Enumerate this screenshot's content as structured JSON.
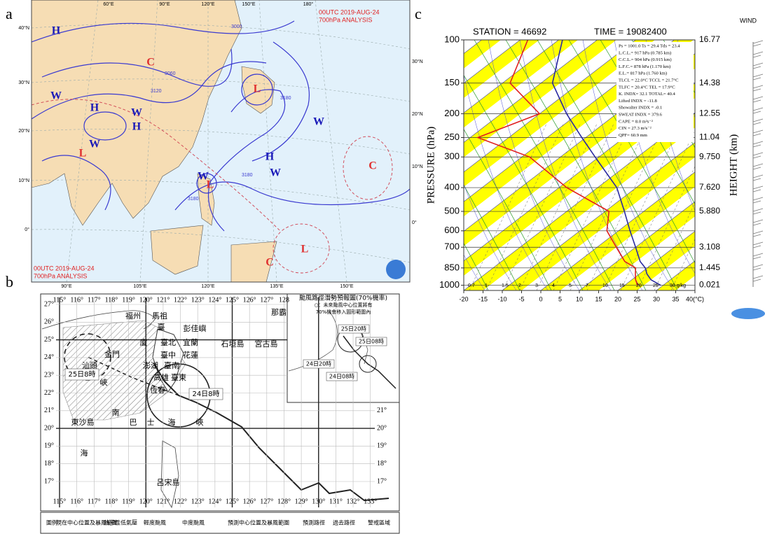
{
  "panel_labels": [
    "a",
    "b",
    "c"
  ],
  "weather_map": {
    "header": [
      "00UTC  2019-AUG-24",
      "700hPa ANALYSIS"
    ],
    "footer": [
      "00UTC  2019-AUG-24",
      "700hPa ANALYSIS"
    ],
    "top_longitudes": [
      "60°E",
      "90°E",
      "120°E",
      "150°E",
      "180°"
    ],
    "bottom_longitudes": [
      "90°E",
      "105°E",
      "120°E",
      "135°E",
      "150°E"
    ],
    "left_latitudes": [
      "40°N",
      "30°N",
      "20°N",
      "10°N",
      "0°"
    ],
    "right_latitudes": [
      "30°N",
      "20°N",
      "10°N",
      "0°"
    ],
    "systems": [
      "H",
      "C",
      "L",
      "W",
      "H",
      "W",
      "H",
      "W",
      "L",
      "W",
      "H",
      "W",
      "W",
      "L",
      "C",
      "L",
      "C"
    ],
    "system_colors": {
      "H": "#1a1ab8",
      "W": "#1a1ab8",
      "L": "#e03030",
      "C": "#e03030"
    },
    "contour_labels": [
      "3000",
      "3060",
      "3120",
      "3180",
      "3180",
      "3180"
    ]
  },
  "track_map": {
    "title": [
      "颱風路徑潛勢預報圖(70%機率)",
      "○：未來颱風中心位置將有",
      "70%機會移入圓形範圍內"
    ],
    "top_longitudes": [
      "115°",
      "116°",
      "117°",
      "118°",
      "119°",
      "120°",
      "121°",
      "122°",
      "123°",
      "124°",
      "125°",
      "126°",
      "127°",
      "128"
    ],
    "bottom_longitudes": [
      "115°",
      "116°",
      "117°",
      "118°",
      "119°",
      "120°",
      "121°",
      "122°",
      "123°",
      "124°",
      "125°",
      "126°",
      "127°",
      "128°",
      "129°",
      "130°",
      "131°",
      "132°",
      "133°"
    ],
    "left_latitudes": [
      "27°",
      "26°",
      "25°",
      "24°",
      "23°",
      "22°",
      "21°",
      "20°",
      "19°",
      "18°",
      "17°"
    ],
    "right_latitudes": [
      "21°",
      "20°",
      "19°",
      "18°",
      "17°"
    ],
    "places": [
      "馬祖",
      "福州",
      "臺",
      "彭佳嶼",
      "那霸",
      "廈",
      "臺北",
      "宜蘭",
      "金門",
      "臺中",
      "花蓮",
      "汕頭",
      "澎湖",
      "臺南",
      "高雄",
      "恆春",
      "臺東",
      "石垣島",
      "宮古島",
      "峽",
      "東沙島",
      "南",
      "巴",
      "士",
      "海",
      "峽",
      "海",
      "呂宋島"
    ],
    "time_labels": [
      "25日8時",
      "24日8時"
    ],
    "inset_labels": [
      "25日20時",
      "25日08時",
      "24日20時",
      "24日08時"
    ],
    "legend": [
      "圖例",
      "現在中心位置及暴風範圍",
      "熱帶性低氣壓",
      "輕度颱風",
      "中度颱風",
      "預測中心位置及暴風範圍",
      "預測路徑",
      "過去路徑",
      "警戒區域"
    ]
  },
  "sounding": {
    "station": "STATION = 46692",
    "time": "TIME = 19082400",
    "wind_label": "WIND",
    "pressure_label": "PRESSURE (hPa)",
    "height_label": "HEIGHT (km)",
    "plim": [
      1050,
      100
    ],
    "xlim": [
      -20,
      40
    ],
    "pressure_ticks": [
      100,
      150,
      200,
      250,
      300,
      400,
      500,
      600,
      700,
      850,
      1000
    ],
    "height_labels": [
      "16.77",
      "14.38",
      "12.55",
      "11.04",
      "9.750",
      "7.620",
      "5.880",
      null,
      "3.108",
      "1.445",
      "0.021"
    ],
    "temperature_ticks": [
      -20,
      -15,
      -10,
      -5,
      0,
      5,
      10,
      15,
      20,
      25,
      30,
      35,
      {
        "value": 40,
        "label": "40(°C)"
      }
    ],
    "mixing_ratio_labels": [
      "0.7",
      "1",
      "1.5",
      "2",
      "3",
      "4",
      "5",
      "7",
      "10",
      "15",
      "20",
      "25",
      "30 g/kg"
    ],
    "indices": [
      "Ps = 1001.0  Ts = 29.4  Tds = 23.4",
      "L.C.L.= 917 hPa (0.785 km)",
      "C.C.L.= 904 hPa (0.915 km)",
      "L.F.C.= 878 hPa (1.170 km)",
      "E.L.= 817 hPa (1.760 km)",
      "TLCL = 22.0°C  TCCL = 21.7°C",
      "TLFC = 20.4°C  TEL = 17.9°C",
      "K. INDX= 32.1  TOTAL= 40.4",
      "Lifted INDX = -11.8",
      "Showalter INDX = -0.1",
      "SWEAT INDX = 379.6",
      "CAPE = 8.0 m²s⁻²",
      "CIN = 27.3 m²s⁻²",
      "QPF= 60.9 mm"
    ],
    "profile_pressure": [
      1001,
      950,
      900,
      850,
      800,
      700,
      600,
      500,
      400,
      300,
      250,
      200,
      150,
      100
    ],
    "temperature": [
      29.4,
      25,
      22,
      19.5,
      16,
      10,
      3,
      -5,
      -15,
      -31,
      -41,
      -53,
      -67,
      -79
    ],
    "dewpoint": [
      23.4,
      21,
      19,
      17,
      12,
      5,
      -3,
      -9,
      -28,
      -48,
      -68,
      -60,
      -78,
      -88
    ],
    "temperature_color": "#2a2aa0",
    "dewpoint_color": "#e02020"
  }
}
